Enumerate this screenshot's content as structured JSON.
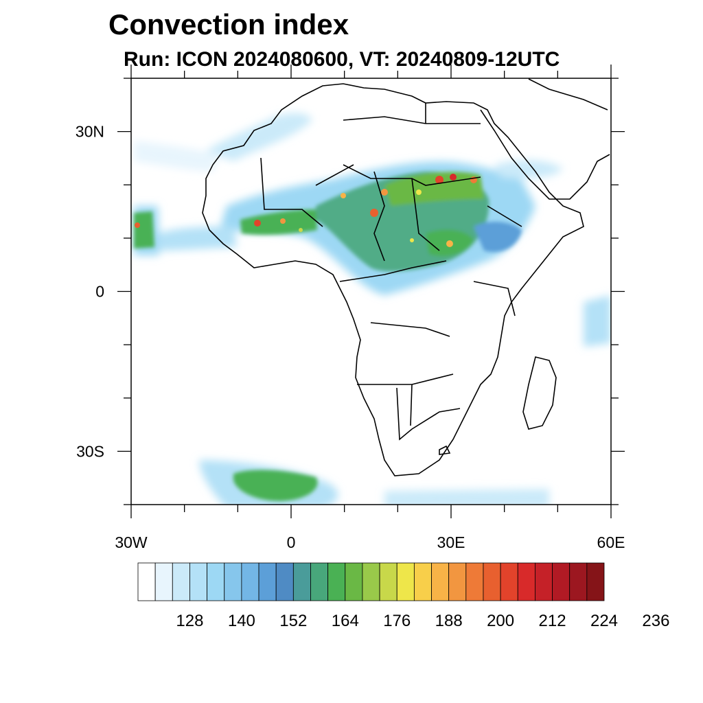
{
  "title": "Convection index",
  "subtitle": "Run: ICON 2024080600,  VT: 20240809-12UTC",
  "map": {
    "projection": "cylindrical-equidistant",
    "lon_range": [
      -30,
      60
    ],
    "lat_range": [
      -40,
      40
    ],
    "lon_ticks": [
      {
        "value": -30,
        "label": "30W"
      },
      {
        "value": 0,
        "label": "0"
      },
      {
        "value": 30,
        "label": "30E"
      },
      {
        "value": 60,
        "label": "60E"
      }
    ],
    "lat_ticks": [
      {
        "value": 30,
        "label": "30N"
      },
      {
        "value": 0,
        "label": "0"
      },
      {
        "value": -30,
        "label": "30S"
      }
    ],
    "minor_tick_step_deg": 10,
    "field": "convection index",
    "coastlines": true,
    "country_borders": true
  },
  "colorbar": {
    "labels": [
      "128",
      "140",
      "152",
      "164",
      "176",
      "188",
      "200",
      "212",
      "224",
      "236"
    ],
    "colors": [
      "#ffffff",
      "#e8f5fd",
      "#cbeaf9",
      "#b4e1f7",
      "#9dd8f4",
      "#86c6ec",
      "#73b6e6",
      "#5c9fd8",
      "#4f8bc4",
      "#4a9c9a",
      "#48a77b",
      "#4ab154",
      "#6ab845",
      "#99c94a",
      "#c8d84a",
      "#eee64a",
      "#f8cf4a",
      "#f8b347",
      "#f29640",
      "#ee7a37",
      "#e8602f",
      "#e2432b",
      "#d82a2a",
      "#c52128",
      "#b11a24",
      "#9c1720",
      "#851418"
    ]
  }
}
